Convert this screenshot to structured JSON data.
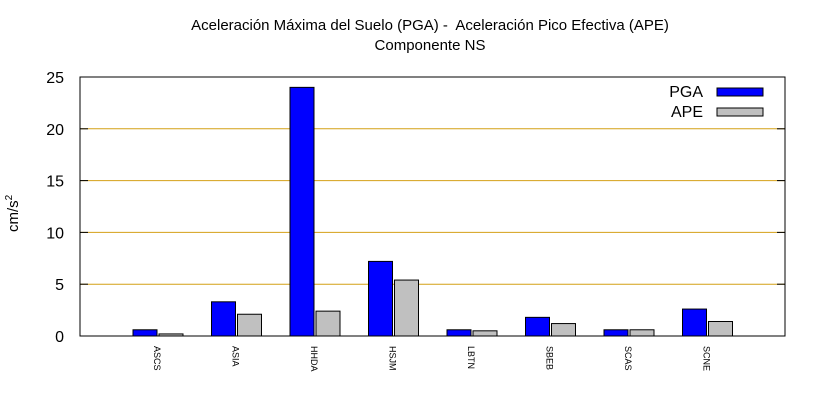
{
  "chart_data": {
    "type": "bar",
    "title": "Aceleración Máxima del Suelo (PGA) -  Aceleración Pico Efectiva (APE)",
    "subtitle": "Componente NS",
    "xlabel": "",
    "ylabel": "cm/s",
    "ylabel_superscript": "2",
    "ylim": [
      0,
      25
    ],
    "yticks": [
      0,
      5,
      10,
      15,
      20,
      25
    ],
    "grid": "horizontal",
    "grid_color": "#d4a017",
    "legend_position": "top-right",
    "categories": [
      "ASCS",
      "ASIA",
      "HHDA",
      "HSJM",
      "LBTN",
      "SBEB",
      "SCAS",
      "SCNE"
    ],
    "series": [
      {
        "name": "PGA",
        "color": "#0000ff",
        "values": [
          0.6,
          3.3,
          24.0,
          7.2,
          0.6,
          1.8,
          0.6,
          2.6
        ]
      },
      {
        "name": "APE",
        "color": "#c0c0c0",
        "values": [
          0.2,
          2.1,
          2.4,
          5.4,
          0.5,
          1.2,
          0.6,
          1.4
        ]
      }
    ]
  }
}
